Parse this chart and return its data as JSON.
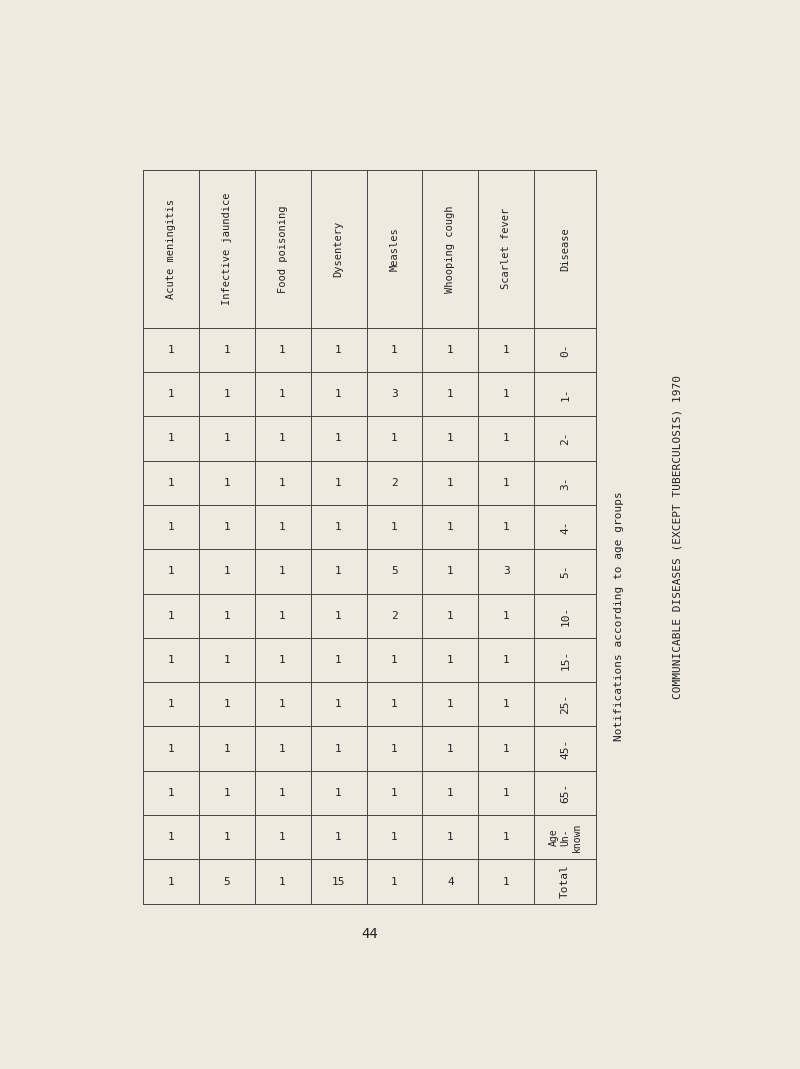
{
  "title": "COMMUNICABLE DISEASES (EXCEPT TUBERCULOSIS) 1970",
  "subtitle": "Notifications according to age groups",
  "page_number": "44",
  "col_headers_ltr": [
    "Acute meningitis",
    "Infective jaundice",
    "Food poisoning",
    "Dysentery",
    "Measles",
    "Whooping cough",
    "Scarlet fever",
    "Disease"
  ],
  "row_headers": [
    "0-",
    "1-",
    "2-",
    "3-",
    "4-",
    "5-",
    "10-",
    "15-",
    "25-",
    "45-",
    "65-",
    "Age\nUn-\nknown",
    "Total"
  ],
  "cell_data": [
    [
      "1",
      "1",
      "1",
      "1",
      "1",
      "1",
      "1",
      "0-"
    ],
    [
      "1",
      "1",
      "1",
      "1",
      "3",
      "1",
      "1",
      "1-"
    ],
    [
      "1",
      "1",
      "1",
      "1",
      "1",
      "1",
      "1",
      "2-"
    ],
    [
      "1",
      "1",
      "1",
      "1",
      "2",
      "1",
      "1",
      "3-"
    ],
    [
      "1",
      "1",
      "1",
      "1",
      "1",
      "1",
      "1",
      "4-"
    ],
    [
      "1",
      "1",
      "1",
      "1",
      "5",
      "1",
      "3",
      "5-"
    ],
    [
      "1",
      "1",
      "1",
      "1",
      "2",
      "1",
      "1",
      "10-"
    ],
    [
      "1",
      "1",
      "1",
      "1",
      "1",
      "1",
      "1",
      "15-"
    ],
    [
      "1",
      "1",
      "1",
      "1",
      "1",
      "1",
      "1",
      "25-"
    ],
    [
      "1",
      "1",
      "1",
      "1",
      "1",
      "1",
      "1",
      "45-"
    ],
    [
      "1",
      "1",
      "1",
      "1",
      "1",
      "1",
      "1",
      "65-"
    ],
    [
      "1",
      "1",
      "1",
      "1",
      "1",
      "1",
      "1",
      "Age\nUn-\nknown"
    ],
    [
      "1",
      "5",
      "1",
      "15",
      "1",
      "4",
      "1",
      "Total"
    ]
  ],
  "background_color": "#eeeae0",
  "line_color": "#444444",
  "text_color": "#222222",
  "header_bg": "#e8e4da"
}
